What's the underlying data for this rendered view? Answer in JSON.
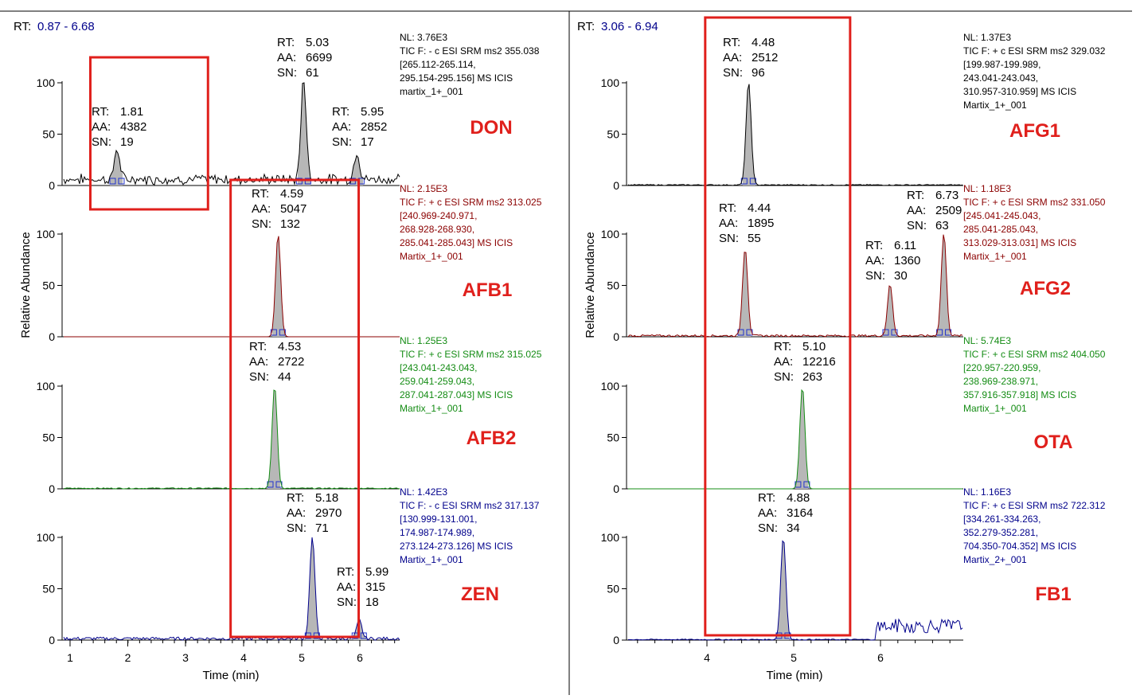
{
  "colors": {
    "black": "#000000",
    "darkred": "#8b0000",
    "green": "#148c14",
    "blue": "#00008b",
    "highlight": "#e0201c",
    "peak_fill": "#b7b7b7",
    "rt_value": "#00008b"
  },
  "y_axis_label": "Relative Abundance",
  "x_axis_label": "Time (min)",
  "chart_data": [
    {
      "panel": "left",
      "type": "line",
      "rt_label": "RT:",
      "rt_range": "0.87 - 6.68",
      "xlim": [
        0.87,
        6.68
      ],
      "x_ticks": [
        "1",
        "2",
        "3",
        "4",
        "5",
        "6"
      ],
      "y_ticks": [
        "0",
        "50",
        "100"
      ],
      "highlight_boxes": [
        {
          "x_range": [
            1.35,
            3.38
          ],
          "rows": [
            "DON"
          ]
        },
        {
          "x_range": [
            3.77,
            5.98
          ],
          "rows": [
            "DON",
            "AFB1",
            "AFB2",
            "ZEN"
          ]
        }
      ],
      "traces": [
        {
          "name": "DON",
          "color": "black",
          "nl": "NL: 3.76E3",
          "method": [
            "TIC F: - c ESI SRM ms2 355.038",
            "[265.112-265.114,",
            "295.154-295.156]  MS  ICIS",
            "martix_1+_001"
          ],
          "noise": 8,
          "peaks": [
            {
              "rt": "1.81",
              "aa": "4382",
              "sn": "19",
              "x": 1.81,
              "height": 30
            },
            {
              "rt": "5.03",
              "aa": "6699",
              "sn": "61",
              "x": 5.03,
              "height": 100
            },
            {
              "rt": "5.95",
              "aa": "2852",
              "sn": "17",
              "x": 5.95,
              "height": 28
            }
          ]
        },
        {
          "name": "AFB1",
          "color": "darkred",
          "nl": "NL: 2.15E3",
          "method": [
            "TIC F: + c ESI SRM ms2 313.025",
            "[240.969-240.971,",
            "268.928-268.930,",
            "285.041-285.043]  MS  ICIS",
            "Martix_1+_001"
          ],
          "noise": 0,
          "peaks": [
            {
              "rt": "4.59",
              "aa": "5047",
              "sn": "132",
              "x": 4.59,
              "height": 100
            }
          ]
        },
        {
          "name": "AFB2",
          "color": "green",
          "nl": "NL: 1.25E3",
          "method": [
            "TIC F: + c ESI SRM ms2 315.025",
            "[243.041-243.043,",
            "259.041-259.043,",
            "287.041-287.043]  MS  ICIS",
            "Martix_1+_001"
          ],
          "noise": 1,
          "peaks": [
            {
              "rt": "4.53",
              "aa": "2722",
              "sn": "44",
              "x": 4.53,
              "height": 100
            }
          ]
        },
        {
          "name": "ZEN",
          "color": "blue",
          "nl": "NL: 1.42E3",
          "method": [
            "TIC F: - c ESI SRM ms2 317.137",
            "[130.999-131.001,",
            "174.987-174.989,",
            "273.124-273.126]  MS  ICIS",
            "Martix_1+_001"
          ],
          "noise": 3,
          "peaks": [
            {
              "rt": "5.18",
              "aa": "2970",
              "sn": "71",
              "x": 5.18,
              "height": 100
            },
            {
              "rt": "5.99",
              "aa": "315",
              "sn": "18",
              "x": 5.99,
              "height": 18
            }
          ]
        }
      ]
    },
    {
      "panel": "right",
      "type": "line",
      "rt_label": "RT:",
      "rt_range": "3.06 - 6.94",
      "xlim": [
        3.06,
        6.94
      ],
      "x_ticks": [
        "4",
        "5",
        "6"
      ],
      "y_ticks": [
        "0",
        "50",
        "100"
      ],
      "highlight_boxes": [
        {
          "x_range": [
            3.98,
            5.65
          ],
          "rows": [
            "AFG1",
            "AFG2",
            "OTA",
            "FB1"
          ]
        }
      ],
      "traces": [
        {
          "name": "AFG1",
          "color": "black",
          "nl": "NL: 1.37E3",
          "method": [
            "TIC F: + c ESI SRM ms2 329.032",
            "[199.987-199.989,",
            "243.041-243.043,",
            "310.957-310.959]  MS  ICIS",
            "Martix_1+_001"
          ],
          "noise": 1,
          "peaks": [
            {
              "rt": "4.48",
              "aa": "2512",
              "sn": "96",
              "x": 4.48,
              "height": 100
            }
          ]
        },
        {
          "name": "AFG2",
          "color": "darkred",
          "nl": "NL: 1.18E3",
          "method": [
            "TIC F: + c ESI SRM ms2 331.050",
            "[245.041-245.043,",
            "285.041-285.043,",
            "313.029-313.031]  MS  ICIS",
            "Martix_1+_001"
          ],
          "noise": 2,
          "peaks": [
            {
              "rt": "4.44",
              "aa": "1895",
              "sn": "55",
              "x": 4.44,
              "height": 86
            },
            {
              "rt": "6.11",
              "aa": "1360",
              "sn": "30",
              "x": 6.11,
              "height": 50
            },
            {
              "rt": "6.73",
              "aa": "2509",
              "sn": "63",
              "x": 6.73,
              "height": 100
            }
          ]
        },
        {
          "name": "OTA",
          "color": "green",
          "nl": "NL: 5.74E3",
          "method": [
            "TIC F: + c ESI SRM ms2 404.050",
            "[220.957-220.959,",
            "238.969-238.971,",
            "357.916-357.918]  MS  ICIS",
            "Martix_1+_001"
          ],
          "noise": 0,
          "peaks": [
            {
              "rt": "5.10",
              "aa": "12216",
              "sn": "263",
              "x": 5.1,
              "height": 100
            }
          ]
        },
        {
          "name": "FB1",
          "color": "blue",
          "nl": "NL: 1.16E3",
          "method": [
            "TIC F: + c ESI SRM ms2 722.312",
            "[334.261-334.263,",
            "352.279-352.281,",
            "704.350-704.352]  MS  ICIS",
            "Martix_2+_001"
          ],
          "noise": 1,
          "peaks": [
            {
              "rt": "4.88",
              "aa": "3164",
              "sn": "34",
              "x": 4.88,
              "height": 100
            }
          ]
        }
      ]
    }
  ]
}
